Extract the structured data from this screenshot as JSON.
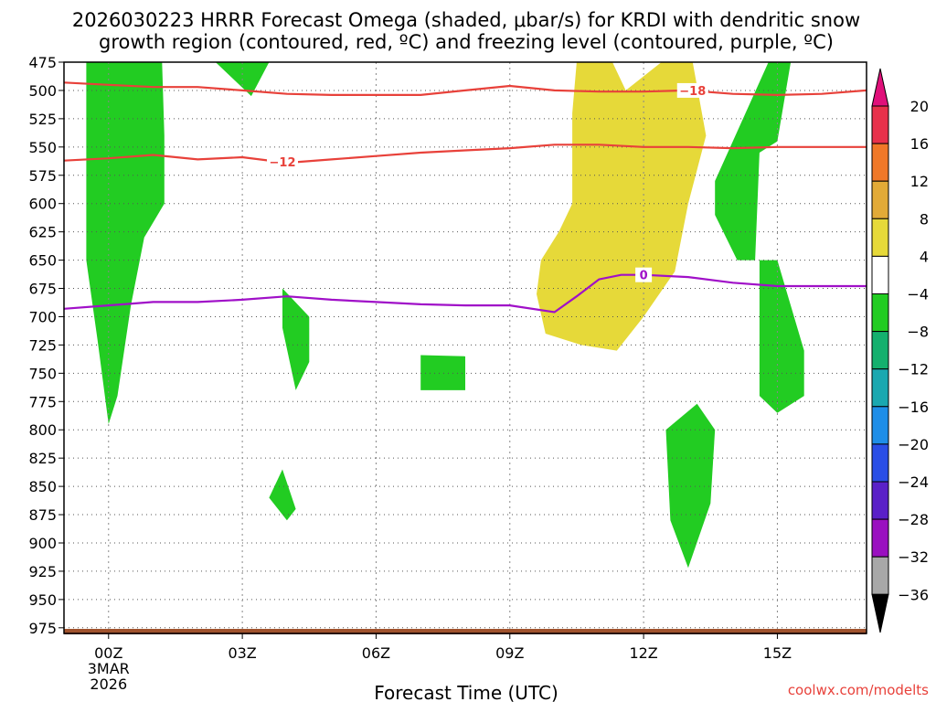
{
  "chart_data": {
    "type": "heatmap",
    "title_line1": "2026030223 HRRR Forecast Omega (shaded, μbar/s) for KRDI with dendritic snow",
    "title_line2": "growth region (contoured, red, ºC) and freezing level (contoured, purple, ºC)",
    "xlabel": "Forecast Time (UTC)",
    "credit": "coolwx.com/modelts",
    "x_ticks": [
      {
        "hour": 0,
        "label": "00Z",
        "sub": [
          "3MAR",
          "2026"
        ]
      },
      {
        "hour": 3,
        "label": "03Z",
        "sub": []
      },
      {
        "hour": 6,
        "label": "06Z",
        "sub": []
      },
      {
        "hour": 9,
        "label": "09Z",
        "sub": []
      },
      {
        "hour": 12,
        "label": "12Z",
        "sub": []
      },
      {
        "hour": 15,
        "label": "15Z",
        "sub": []
      }
    ],
    "xlim": [
      -1,
      17
    ],
    "ylim": [
      475,
      980
    ],
    "y_ticks": [
      "475",
      "500",
      "525",
      "550",
      "575",
      "600",
      "625",
      "650",
      "675",
      "700",
      "725",
      "750",
      "775",
      "800",
      "825",
      "850",
      "875",
      "900",
      "925",
      "950",
      "975"
    ],
    "grid": true,
    "colorbar": {
      "labels": [
        "20",
        "16",
        "12",
        "8",
        "4",
        "−4",
        "−8",
        "−12",
        "−16",
        "−20",
        "−24",
        "−28",
        "−32",
        "−36"
      ],
      "colors": [
        "#e8314b",
        "#f07828",
        "#e2aa37",
        "#e6d939",
        "#ffffff",
        "#22cc22",
        "#14b06e",
        "#1aa8b0",
        "#1e8ee8",
        "#2a4ee6",
        "#5a20c8",
        "#9a10c0",
        "#a8a8a8"
      ],
      "top_arrow_color": "#e0107a",
      "bottom_arrow_color": "#000000",
      "placement": "right"
    },
    "omega_regions": [
      {
        "color": "#22cc22",
        "points": [
          [
            -0.5,
            475
          ],
          [
            1.2,
            475
          ],
          [
            1.25,
            540
          ],
          [
            1.25,
            600
          ],
          [
            0.8,
            630
          ],
          [
            0.5,
            690
          ],
          [
            0.2,
            770
          ],
          [
            0.0,
            795
          ],
          [
            -0.25,
            720
          ],
          [
            -0.5,
            650
          ]
        ]
      },
      {
        "color": "#22cc22",
        "points": [
          [
            2.4,
            475
          ],
          [
            3.6,
            475
          ],
          [
            3.2,
            505
          ],
          [
            2.8,
            490
          ]
        ]
      },
      {
        "color": "#22cc22",
        "points": [
          [
            3.9,
            675
          ],
          [
            4.5,
            700
          ],
          [
            4.5,
            740
          ],
          [
            4.2,
            765
          ],
          [
            3.9,
            710
          ]
        ]
      },
      {
        "color": "#22cc22",
        "points": [
          [
            3.6,
            860
          ],
          [
            3.9,
            835
          ],
          [
            4.2,
            870
          ],
          [
            4.0,
            880
          ]
        ]
      },
      {
        "color": "#22cc22",
        "points": [
          [
            7.0,
            734
          ],
          [
            8.0,
            735
          ],
          [
            8.0,
            765
          ],
          [
            7.0,
            765
          ]
        ]
      },
      {
        "color": "#22cc22",
        "points": [
          [
            13.2,
            777
          ],
          [
            13.6,
            800
          ],
          [
            13.5,
            865
          ],
          [
            13.0,
            922
          ],
          [
            12.6,
            880
          ],
          [
            12.5,
            800
          ]
        ]
      },
      {
        "color": "#22cc22",
        "points": [
          [
            14.8,
            475
          ],
          [
            15.3,
            475
          ],
          [
            15.0,
            545
          ],
          [
            14.6,
            555
          ],
          [
            14.5,
            650
          ],
          [
            14.1,
            650
          ],
          [
            13.6,
            610
          ],
          [
            13.6,
            580
          ]
        ]
      },
      {
        "color": "#22cc22",
        "points": [
          [
            14.6,
            650
          ],
          [
            15.0,
            650
          ],
          [
            15.6,
            730
          ],
          [
            15.6,
            770
          ],
          [
            15.0,
            785
          ],
          [
            14.6,
            770
          ]
        ]
      },
      {
        "color": "#e6d939",
        "points": [
          [
            10.5,
            475
          ],
          [
            11.3,
            475
          ],
          [
            11.6,
            500
          ],
          [
            12.4,
            475
          ],
          [
            13.1,
            475
          ],
          [
            13.4,
            540
          ],
          [
            13.0,
            600
          ],
          [
            12.7,
            660
          ],
          [
            12.0,
            700
          ],
          [
            11.4,
            730
          ],
          [
            10.6,
            725
          ],
          [
            9.8,
            715
          ],
          [
            9.6,
            680
          ],
          [
            9.7,
            650
          ],
          [
            10.1,
            625
          ],
          [
            10.4,
            600
          ],
          [
            10.4,
            520
          ]
        ]
      }
    ],
    "contours": [
      {
        "label": "-18",
        "color": "#e8413a",
        "label_at": [
          13.1,
          500
        ],
        "points": [
          [
            -1,
            493
          ],
          [
            0,
            495
          ],
          [
            1,
            497
          ],
          [
            2,
            497
          ],
          [
            3,
            500
          ],
          [
            4,
            503
          ],
          [
            5,
            504
          ],
          [
            6,
            504
          ],
          [
            7,
            504
          ],
          [
            8,
            500
          ],
          [
            9,
            496
          ],
          [
            10,
            500
          ],
          [
            11,
            501
          ],
          [
            12,
            501
          ],
          [
            13,
            500
          ],
          [
            14,
            503
          ],
          [
            15,
            504
          ],
          [
            16,
            503
          ],
          [
            17,
            500
          ]
        ]
      },
      {
        "label": "-12",
        "color": "#e8413a",
        "label_at": [
          3.9,
          563
        ],
        "points": [
          [
            -1,
            562
          ],
          [
            0,
            560
          ],
          [
            1,
            557
          ],
          [
            2,
            561
          ],
          [
            3,
            559
          ],
          [
            4,
            564
          ],
          [
            5,
            561
          ],
          [
            6,
            558
          ],
          [
            7,
            555
          ],
          [
            8,
            553
          ],
          [
            9,
            551
          ],
          [
            10,
            548
          ],
          [
            11,
            548
          ],
          [
            12,
            550
          ],
          [
            13,
            550
          ],
          [
            14,
            551
          ],
          [
            15,
            550
          ],
          [
            16,
            550
          ],
          [
            17,
            550
          ]
        ]
      },
      {
        "label": "0",
        "color": "#a010c8",
        "label_at": [
          12.0,
          663
        ],
        "points": [
          [
            -1,
            693
          ],
          [
            0,
            690
          ],
          [
            1,
            687
          ],
          [
            2,
            687
          ],
          [
            3,
            685
          ],
          [
            4,
            682
          ],
          [
            5,
            685
          ],
          [
            6,
            687
          ],
          [
            7,
            689
          ],
          [
            8,
            690
          ],
          [
            9,
            690
          ],
          [
            10,
            696
          ],
          [
            10.5,
            682
          ],
          [
            11,
            667
          ],
          [
            11.5,
            663
          ],
          [
            12,
            663
          ],
          [
            13,
            665
          ],
          [
            14,
            670
          ],
          [
            15,
            673
          ],
          [
            16,
            673
          ],
          [
            17,
            673
          ]
        ]
      }
    ]
  }
}
